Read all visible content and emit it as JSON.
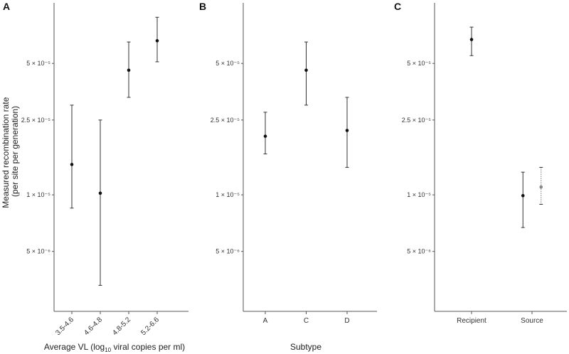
{
  "figure": {
    "ylabel_line1": "Measured recombination rate",
    "ylabel_line2": "(per site per generation)"
  },
  "chart_data": [
    {
      "panel": "A",
      "type": "scatter",
      "scale_y": "log",
      "xlabel_pre": "Average VL (log",
      "xlabel_sub": "10",
      "xlabel_post": " viral copies per ml)",
      "ylim": [
        2.4e-06,
        0.000105
      ],
      "yticks": [
        {
          "value": 5e-06,
          "label": "5 × 10⁻⁶"
        },
        {
          "value": 1e-05,
          "label": "1 × 10⁻⁵"
        },
        {
          "value": 2.5e-05,
          "label": "2.5 × 10⁻⁵"
        },
        {
          "value": 5e-05,
          "label": "5 × 10⁻⁵"
        }
      ],
      "categories": [
        "3.5-4.6",
        "4.6-4.8",
        "4.8-5.2",
        "5.2-6.6"
      ],
      "points": [
        {
          "category": "3.5-4.6",
          "y": 1.45e-05,
          "lower": 8.5e-06,
          "upper": 3e-05
        },
        {
          "category": "4.6-4.8",
          "y": 1.02e-05,
          "lower": 3.3e-06,
          "upper": 2.5e-05
        },
        {
          "category": "4.8-5.2",
          "y": 4.6e-05,
          "lower": 3.3e-05,
          "upper": 6.5e-05
        },
        {
          "category": "5.2-6.6",
          "y": 6.6e-05,
          "lower": 5.1e-05,
          "upper": 8.8e-05
        }
      ]
    },
    {
      "panel": "B",
      "type": "scatter",
      "scale_y": "log",
      "xlabel": "Subtype",
      "ylim": [
        2.4e-06,
        0.000105
      ],
      "yticks": [
        {
          "value": 5e-06,
          "label": "5 × 10⁻⁶"
        },
        {
          "value": 1e-05,
          "label": "1 × 10⁻⁵"
        },
        {
          "value": 2.5e-05,
          "label": "2.5 × 10⁻⁵"
        },
        {
          "value": 5e-05,
          "label": "5 × 10⁻⁵"
        }
      ],
      "categories": [
        "A",
        "C",
        "D"
      ],
      "points": [
        {
          "category": "A",
          "y": 2.05e-05,
          "lower": 1.65e-05,
          "upper": 2.75e-05
        },
        {
          "category": "C",
          "y": 4.6e-05,
          "lower": 3e-05,
          "upper": 6.5e-05
        },
        {
          "category": "D",
          "y": 2.2e-05,
          "lower": 1.4e-05,
          "upper": 3.3e-05
        }
      ]
    },
    {
      "panel": "C",
      "type": "scatter",
      "scale_y": "log",
      "xlabel": "",
      "ylim": [
        2.4e-06,
        0.000105
      ],
      "yticks": [
        {
          "value": 5e-06,
          "label": "5 × 10⁻⁶"
        },
        {
          "value": 1e-05,
          "label": "1 × 10⁻⁵"
        },
        {
          "value": 2.5e-05,
          "label": "2.5 × 10⁻⁵"
        },
        {
          "value": 5e-05,
          "label": "5 × 10⁻⁵"
        }
      ],
      "categories": [
        "Recipient",
        "Source"
      ],
      "points": [
        {
          "category": "Recipient",
          "y": 6.7e-05,
          "lower": 5.5e-05,
          "upper": 7.8e-05,
          "style": "solid"
        },
        {
          "category": "Source",
          "y": 9.9e-06,
          "lower": 6.7e-06,
          "upper": 1.32e-05,
          "style": "solid",
          "offset": -0.15
        },
        {
          "category": "Source",
          "y": 1.1e-05,
          "lower": 8.9e-06,
          "upper": 1.4e-05,
          "style": "dotted",
          "offset": 0.15
        }
      ]
    }
  ]
}
